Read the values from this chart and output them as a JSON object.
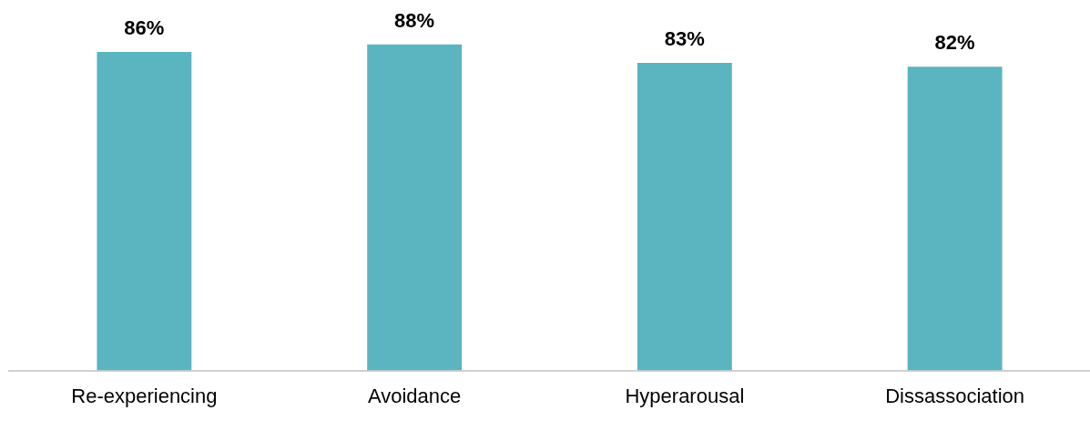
{
  "chart_data": {
    "type": "bar",
    "categories": [
      "Re-experiencing",
      "Avoidance",
      "Hyperarousal",
      "Dissassociation"
    ],
    "values": [
      86,
      88,
      83,
      82
    ],
    "value_labels": [
      "86%",
      "88%",
      "83%",
      "82%"
    ],
    "color": "#5ab5c0",
    "grid": false,
    "legend": false,
    "tick_labels": "x"
  }
}
